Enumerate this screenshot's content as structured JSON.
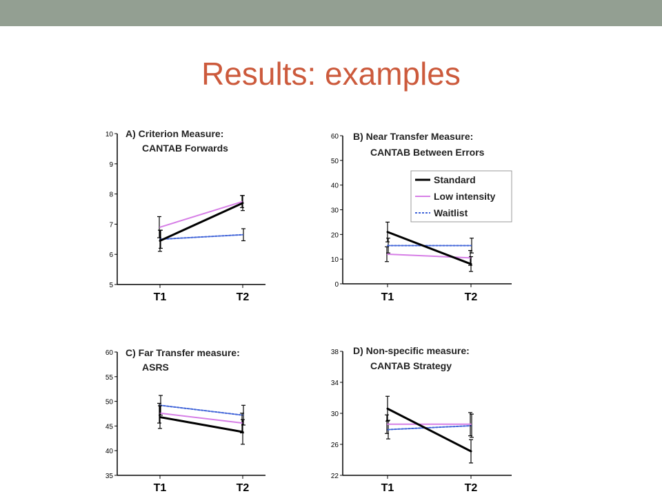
{
  "slide": {
    "title": "Results: examples",
    "bar_color": "#939f92",
    "title_color": "#cc5a3c"
  },
  "chart_data": [
    {
      "type": "line",
      "title": "A) Criterion Measure:",
      "subtitle": "CANTAB Forwards",
      "categories": [
        "T1",
        "T2"
      ],
      "ylim": [
        5,
        10
      ],
      "yticks": [
        5,
        6,
        7,
        8,
        9,
        10
      ],
      "grid": false,
      "series": [
        {
          "name": "Standard",
          "values": [
            6.45,
            7.7
          ],
          "err": [
            0.35,
            0.25
          ]
        },
        {
          "name": "Low intensity",
          "values": [
            6.9,
            7.75
          ],
          "err": [
            0.35,
            0.2
          ]
        },
        {
          "name": "Waitlist",
          "values": [
            6.5,
            6.65
          ],
          "err": [
            0.3,
            0.2
          ]
        }
      ]
    },
    {
      "type": "line",
      "title": "B) Near Transfer Measure:",
      "subtitle": "CANTAB Between Errors",
      "categories": [
        "T1",
        "T2"
      ],
      "ylim": [
        0,
        60
      ],
      "yticks": [
        0,
        10,
        20,
        30,
        40,
        50,
        60
      ],
      "grid": false,
      "legend": {
        "position": "top-right",
        "entries": [
          "Standard",
          "Low intensity",
          "Waitlist"
        ]
      },
      "series": [
        {
          "name": "Standard",
          "values": [
            21,
            8
          ],
          "err": [
            4,
            3
          ]
        },
        {
          "name": "Low intensity",
          "values": [
            12,
            10.5
          ],
          "err": [
            3,
            3
          ]
        },
        {
          "name": "Waitlist",
          "values": [
            15.5,
            15.5
          ],
          "err": [
            3,
            3
          ]
        }
      ]
    },
    {
      "type": "line",
      "title": "C) Far Transfer measure:",
      "subtitle": "ASRS",
      "categories": [
        "T1",
        "T2"
      ],
      "ylim": [
        35,
        60
      ],
      "yticks": [
        35,
        40,
        45,
        50,
        55,
        60
      ],
      "grid": false,
      "series": [
        {
          "name": "Standard",
          "values": [
            46.8,
            43.8
          ],
          "err": [
            2.3,
            2.5
          ]
        },
        {
          "name": "Low intensity",
          "values": [
            47.6,
            45.6
          ],
          "err": [
            2.0,
            2.0
          ]
        },
        {
          "name": "Waitlist",
          "values": [
            49.2,
            47.2
          ],
          "err": [
            2.0,
            2.0
          ]
        }
      ]
    },
    {
      "type": "line",
      "title": "D) Non-specific measure:",
      "subtitle": "CANTAB Strategy",
      "categories": [
        "T1",
        "T2"
      ],
      "ylim": [
        22,
        38
      ],
      "yticks": [
        22,
        26,
        30,
        34,
        38
      ],
      "grid": false,
      "series": [
        {
          "name": "Standard",
          "values": [
            30.6,
            25.1
          ],
          "err": [
            1.6,
            1.5
          ]
        },
        {
          "name": "Low intensity",
          "values": [
            28.6,
            28.6
          ],
          "err": [
            1.2,
            1.5
          ]
        },
        {
          "name": "Waitlist",
          "values": [
            27.9,
            28.4
          ],
          "err": [
            1.2,
            1.5
          ]
        }
      ]
    }
  ]
}
